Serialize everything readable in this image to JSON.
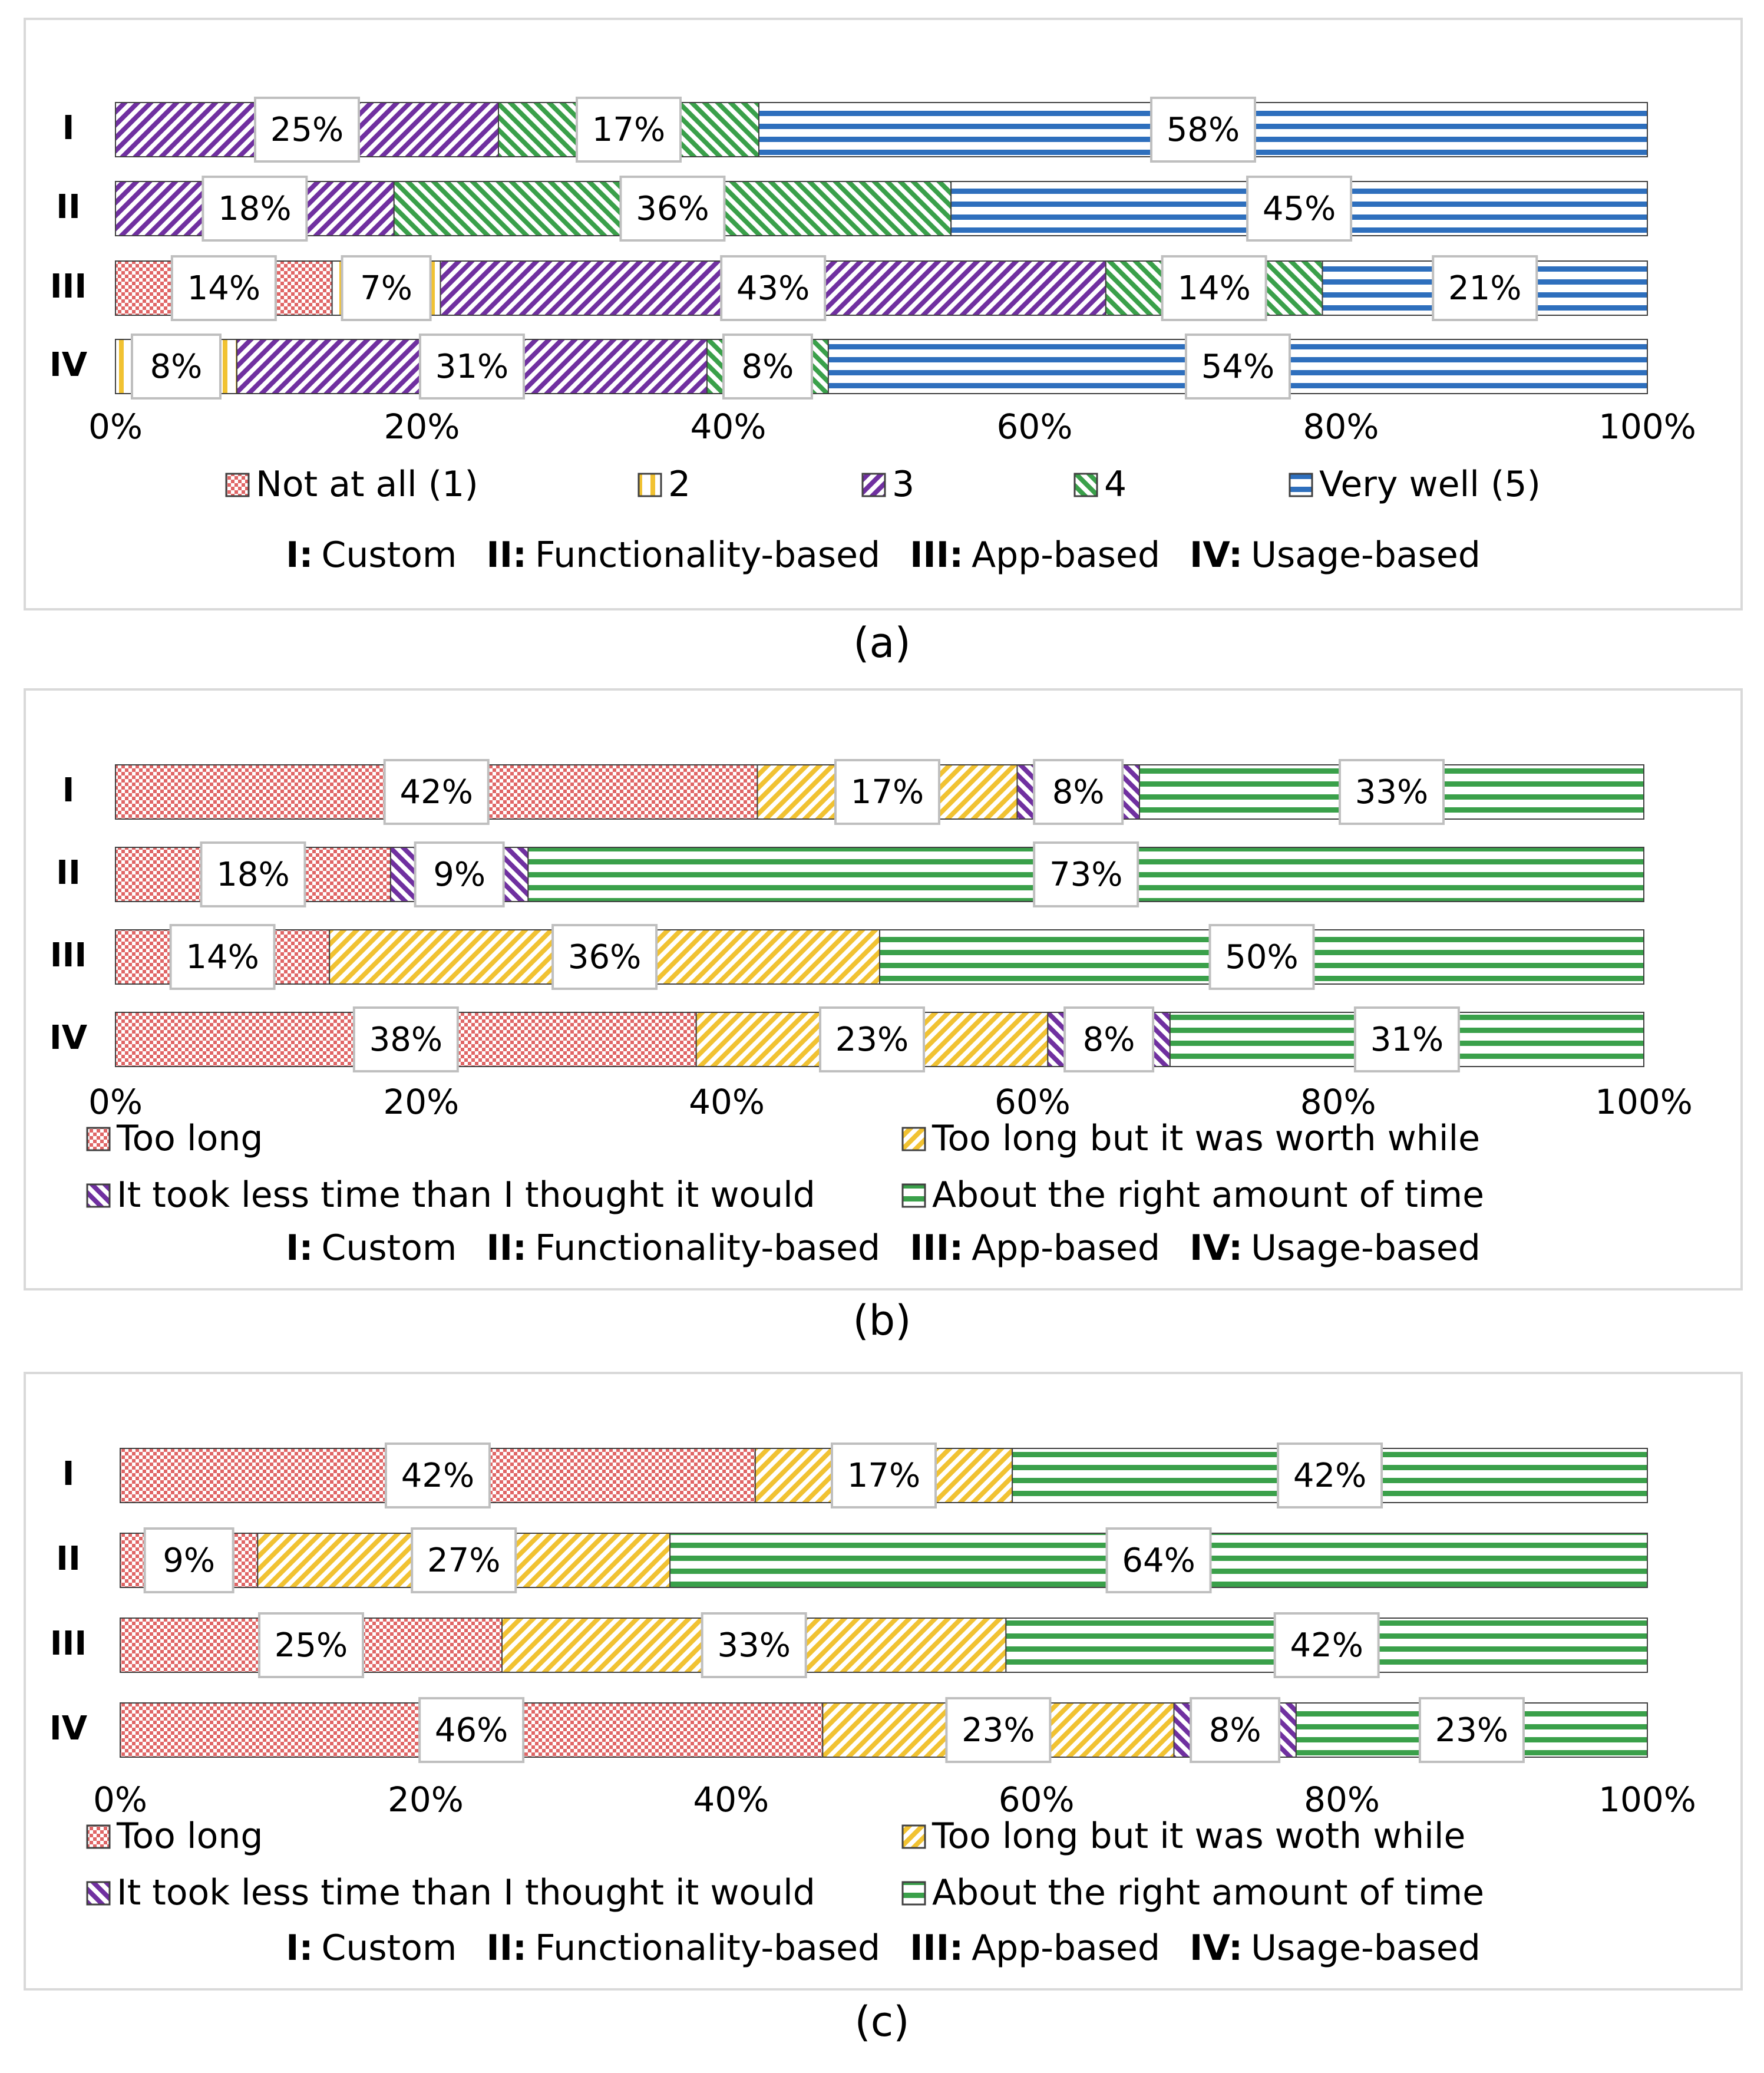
{
  "figures": [
    {
      "caption": "(a)",
      "chart_data": {
        "type": "bar",
        "orientation": "horizontal",
        "stacked": "100%",
        "categories": [
          "I",
          "II",
          "III",
          "IV"
        ],
        "xlim": [
          0,
          100
        ],
        "ticks": [
          "0%",
          "20%",
          "40%",
          "60%",
          "80%",
          "100%"
        ],
        "series": [
          {
            "name": "Not at all (1)",
            "values": [
              0,
              0,
              14,
              0
            ],
            "labels": [
              "",
              "",
              "14%",
              ""
            ],
            "color": "#e06666",
            "pattern": "dots"
          },
          {
            "name": "2",
            "values": [
              0,
              0,
              7,
              8
            ],
            "labels": [
              "",
              "",
              "7%",
              "8%"
            ],
            "color": "#f1c232",
            "pattern": "vertical"
          },
          {
            "name": "3",
            "values": [
              25,
              18,
              43,
              31
            ],
            "labels": [
              "25%",
              "18%",
              "43%",
              "31%"
            ],
            "color": "#7030a0",
            "pattern": "diag-up"
          },
          {
            "name": "4",
            "values": [
              17,
              36,
              14,
              8
            ],
            "labels": [
              "17%",
              "36%",
              "14%",
              "8%"
            ],
            "color": "#3aa04a",
            "pattern": "diag-down"
          },
          {
            "name": "Very well (5)",
            "values": [
              58,
              45,
              21,
              54
            ],
            "labels": [
              "58%",
              "45%",
              "21%",
              "54%"
            ],
            "color": "#2e6fbd",
            "pattern": "horizontal"
          }
        ],
        "legend_position": "bottom",
        "legend_key": [
          {
            "code": "I:",
            "text": "Custom"
          },
          {
            "code": "II:",
            "text": "Functionality-based"
          },
          {
            "code": "III:",
            "text": "App-based"
          },
          {
            "code": "IV:",
            "text": "Usage-based"
          }
        ]
      }
    },
    {
      "caption": "(b)",
      "chart_data": {
        "type": "bar",
        "orientation": "horizontal",
        "stacked": "100%",
        "categories": [
          "I",
          "II",
          "III",
          "IV"
        ],
        "xlim": [
          0,
          100
        ],
        "ticks": [
          "0%",
          "20%",
          "40%",
          "60%",
          "80%",
          "100%"
        ],
        "series": [
          {
            "name": "Too long",
            "values": [
              42,
              18,
              14,
              38
            ],
            "labels": [
              "42%",
              "18%",
              "14%",
              "38%"
            ],
            "color": "#e06666",
            "pattern": "dots"
          },
          {
            "name": "Too long but it was worth while",
            "values": [
              17,
              0,
              36,
              23
            ],
            "labels": [
              "17%",
              "",
              "36%",
              "23%"
            ],
            "color": "#f1c232",
            "pattern": "diag-up"
          },
          {
            "name": "It took less time than I thought it would",
            "values": [
              8,
              9,
              0,
              8
            ],
            "labels": [
              "8%",
              "9%",
              "",
              "8%"
            ],
            "color": "#7030a0",
            "pattern": "diag-down"
          },
          {
            "name": "About the right amount of time",
            "values": [
              33,
              73,
              50,
              31
            ],
            "labels": [
              "33%",
              "73%",
              "50%",
              "31%"
            ],
            "color": "#3aa04a",
            "pattern": "horizontal"
          }
        ],
        "legend_position": "bottom",
        "legend_key": [
          {
            "code": "I:",
            "text": "Custom"
          },
          {
            "code": "II:",
            "text": "Functionality-based"
          },
          {
            "code": "III:",
            "text": "App-based"
          },
          {
            "code": "IV:",
            "text": "Usage-based"
          }
        ]
      }
    },
    {
      "caption": "(c)",
      "chart_data": {
        "type": "bar",
        "orientation": "horizontal",
        "stacked": "100%",
        "categories": [
          "I",
          "II",
          "III",
          "IV"
        ],
        "xlim": [
          0,
          100
        ],
        "ticks": [
          "0%",
          "20%",
          "40%",
          "60%",
          "80%",
          "100%"
        ],
        "series": [
          {
            "name": "Too long",
            "values": [
              42,
              9,
              25,
              46
            ],
            "labels": [
              "42%",
              "9%",
              "25%",
              "46%"
            ],
            "color": "#e06666",
            "pattern": "dots"
          },
          {
            "name": "Too long but it was woth while",
            "values": [
              17,
              27,
              33,
              23
            ],
            "labels": [
              "17%",
              "27%",
              "33%",
              "23%"
            ],
            "color": "#f1c232",
            "pattern": "diag-up"
          },
          {
            "name": "It took less time than I thought it would",
            "values": [
              0,
              0,
              0,
              8
            ],
            "labels": [
              "",
              "",
              "",
              "8%"
            ],
            "color": "#7030a0",
            "pattern": "diag-down"
          },
          {
            "name": "About the right amount of time",
            "values": [
              42,
              64,
              42,
              23
            ],
            "labels": [
              "42%",
              "64%",
              "42%",
              "23%"
            ],
            "color": "#3aa04a",
            "pattern": "horizontal"
          }
        ],
        "legend_position": "bottom",
        "legend_key": [
          {
            "code": "I:",
            "text": "Custom"
          },
          {
            "code": "II:",
            "text": "Functionality-based"
          },
          {
            "code": "III:",
            "text": "App-based"
          },
          {
            "code": "IV:",
            "text": "Usage-based"
          }
        ]
      }
    }
  ]
}
